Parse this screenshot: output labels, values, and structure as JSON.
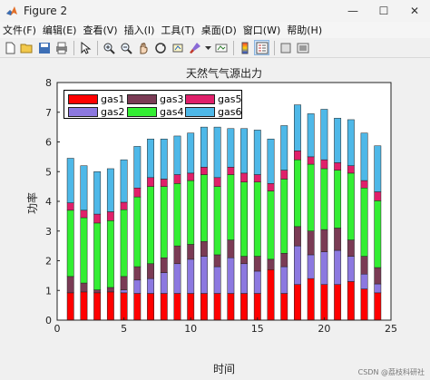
{
  "window": {
    "title": "Figure 2",
    "minimize": "—",
    "maximize": "☐",
    "close": "✕"
  },
  "menu": [
    "文件(F)",
    "编辑(E)",
    "查看(V)",
    "插入(I)",
    "工具(T)",
    "桌面(D)",
    "窗口(W)",
    "帮助(H)"
  ],
  "toolbar_icons": [
    "new-figure-icon",
    "open-file-icon",
    "save-icon",
    "print-icon",
    "pointer-icon",
    "zoom-in-icon",
    "zoom-out-icon",
    "pan-icon",
    "rotate-3d-icon",
    "data-cursor-icon",
    "brush-icon",
    "link-plot-icon",
    "colorbar-icon",
    "legend-icon",
    "hide-plot-tools-icon",
    "show-plot-tools-icon"
  ],
  "colors": {
    "gas1": "#ff0000",
    "gas2": "#8c78e0",
    "gas3": "#7a3b55",
    "gas4": "#33ee33",
    "gas5": "#e0206a",
    "gas6": "#4eb8e8"
  },
  "chart_data": {
    "type": "bar",
    "stacked": true,
    "title": "天然气气源出力",
    "xlabel": "时间",
    "ylabel": "功率",
    "xlim": [
      0,
      25
    ],
    "ylim": [
      0,
      8
    ],
    "xticks": [
      0,
      5,
      10,
      15,
      20,
      25
    ],
    "yticks": [
      0,
      1,
      2,
      3,
      4,
      5,
      6,
      7,
      8
    ],
    "grid": false,
    "legend_position": "top-left",
    "categories": [
      1,
      2,
      3,
      4,
      5,
      6,
      7,
      8,
      9,
      10,
      11,
      12,
      13,
      14,
      15,
      16,
      17,
      18,
      19,
      20,
      21,
      22,
      23,
      24
    ],
    "series": [
      {
        "name": "gas1",
        "values": [
          0.92,
          0.95,
          0.92,
          0.95,
          0.92,
          0.9,
          0.9,
          0.9,
          0.9,
          0.9,
          0.9,
          0.9,
          0.9,
          0.9,
          0.9,
          1.7,
          0.9,
          1.2,
          1.4,
          1.2,
          1.2,
          1.3,
          1.05,
          0.92
        ]
      },
      {
        "name": "gas2",
        "values": [
          0.0,
          0.0,
          0.0,
          0.0,
          0.1,
          0.45,
          0.5,
          0.7,
          1.0,
          1.15,
          1.25,
          0.9,
          1.2,
          1.0,
          0.75,
          0.0,
          0.9,
          1.3,
          0.8,
          1.1,
          1.15,
          0.85,
          0.5,
          0.3
        ]
      },
      {
        "name": "gas3",
        "values": [
          0.55,
          0.3,
          0.1,
          0.15,
          0.45,
          0.45,
          0.5,
          0.5,
          0.6,
          0.5,
          0.5,
          0.4,
          0.6,
          0.25,
          0.5,
          0.35,
          0.45,
          0.65,
          0.8,
          0.75,
          0.75,
          0.55,
          0.6,
          0.55
        ]
      },
      {
        "name": "gas4",
        "values": [
          2.23,
          2.2,
          2.25,
          2.25,
          2.25,
          2.35,
          2.6,
          2.4,
          2.1,
          2.15,
          2.25,
          2.3,
          2.2,
          2.5,
          2.5,
          2.3,
          2.5,
          2.25,
          2.25,
          2.05,
          1.95,
          2.25,
          2.3,
          2.25
        ]
      },
      {
        "name": "gas5",
        "values": [
          0.25,
          0.25,
          0.3,
          0.3,
          0.25,
          0.3,
          0.3,
          0.25,
          0.3,
          0.25,
          0.25,
          0.3,
          0.25,
          0.3,
          0.25,
          0.25,
          0.3,
          0.3,
          0.25,
          0.3,
          0.25,
          0.25,
          0.25,
          0.3
        ]
      },
      {
        "name": "gas6",
        "values": [
          1.5,
          1.5,
          1.43,
          1.45,
          1.43,
          1.4,
          1.3,
          1.35,
          1.3,
          1.35,
          1.35,
          1.7,
          1.3,
          1.5,
          1.5,
          1.5,
          1.5,
          1.55,
          1.45,
          1.7,
          1.5,
          1.55,
          1.6,
          1.55
        ]
      }
    ]
  },
  "watermark": "CSDN @荔枝科研社"
}
